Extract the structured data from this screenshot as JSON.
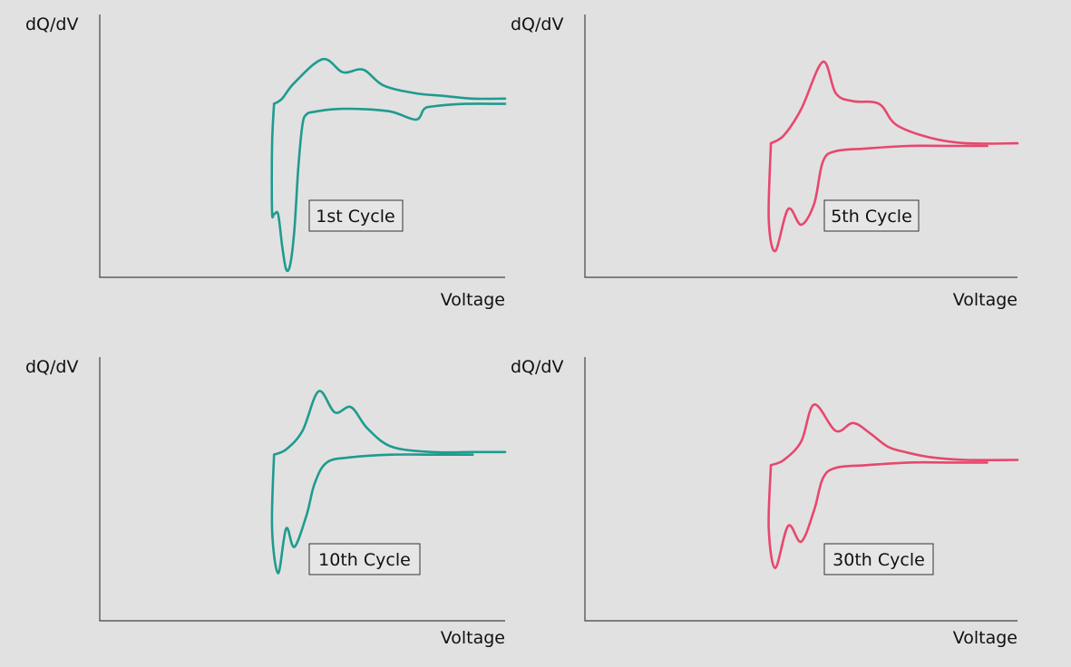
{
  "chart_data": [
    {
      "type": "line",
      "title": "",
      "xlabel": "Voltage",
      "ylabel": "dQ/dV",
      "annotation": "1st Cycle",
      "color": "#1f9b8f",
      "series": [
        {
          "x": [
            0.43,
            0.45,
            0.48,
            0.55,
            0.6,
            0.65,
            0.7,
            0.78,
            0.85,
            0.92,
            1.0
          ],
          "y": [
            0.66,
            0.68,
            0.74,
            0.83,
            0.78,
            0.79,
            0.73,
            0.7,
            0.69,
            0.68,
            0.68
          ]
        },
        {
          "x": [
            0.43,
            0.425,
            0.425,
            0.43,
            0.44,
            0.45,
            0.46,
            0.47,
            0.48,
            0.49,
            0.5,
            0.51,
            0.53,
            0.58,
            0.65,
            0.72,
            0.78,
            0.8,
            0.82,
            0.9,
            1.0
          ],
          "y": [
            0.66,
            0.5,
            0.25,
            0.24,
            0.24,
            0.12,
            0.03,
            0.05,
            0.18,
            0.42,
            0.58,
            0.62,
            0.63,
            0.64,
            0.64,
            0.63,
            0.6,
            0.64,
            0.65,
            0.66,
            0.66
          ]
        }
      ]
    },
    {
      "type": "line",
      "title": "",
      "xlabel": "Voltage",
      "ylabel": "dQ/dV",
      "annotation": "5th Cycle",
      "color": "#e8476d",
      "series": [
        {
          "x": [
            0.43,
            0.46,
            0.5,
            0.55,
            0.58,
            0.62,
            0.68,
            0.72,
            0.8,
            0.88,
            1.0
          ],
          "y": [
            0.51,
            0.54,
            0.64,
            0.82,
            0.7,
            0.67,
            0.66,
            0.58,
            0.53,
            0.51,
            0.51
          ]
        },
        {
          "x": [
            0.43,
            0.425,
            0.44,
            0.47,
            0.5,
            0.53,
            0.55,
            0.58,
            0.65,
            0.75,
            0.85,
            0.93
          ],
          "y": [
            0.51,
            0.22,
            0.1,
            0.26,
            0.2,
            0.28,
            0.44,
            0.48,
            0.49,
            0.5,
            0.5,
            0.5
          ]
        }
      ]
    },
    {
      "type": "line",
      "title": "",
      "xlabel": "Voltage",
      "ylabel": "dQ/dV",
      "annotation": "10th Cycle",
      "color": "#1f9b8f",
      "series": [
        {
          "x": [
            0.43,
            0.46,
            0.5,
            0.54,
            0.58,
            0.62,
            0.66,
            0.72,
            0.82,
            0.92,
            1.0
          ],
          "y": [
            0.63,
            0.65,
            0.72,
            0.87,
            0.79,
            0.81,
            0.73,
            0.66,
            0.64,
            0.64,
            0.64
          ]
        },
        {
          "x": [
            0.43,
            0.425,
            0.44,
            0.46,
            0.48,
            0.51,
            0.53,
            0.56,
            0.62,
            0.72,
            0.82,
            0.92
          ],
          "y": [
            0.63,
            0.35,
            0.18,
            0.35,
            0.28,
            0.4,
            0.52,
            0.6,
            0.62,
            0.63,
            0.63,
            0.63
          ]
        }
      ]
    },
    {
      "type": "line",
      "title": "",
      "xlabel": "Voltage",
      "ylabel": "dQ/dV",
      "annotation": "30th Cycle",
      "color": "#e8476d",
      "series": [
        {
          "x": [
            0.43,
            0.46,
            0.5,
            0.53,
            0.58,
            0.62,
            0.66,
            0.7,
            0.74,
            0.8,
            0.88,
            1.0
          ],
          "y": [
            0.59,
            0.61,
            0.68,
            0.82,
            0.72,
            0.75,
            0.71,
            0.66,
            0.64,
            0.62,
            0.61,
            0.61
          ]
        },
        {
          "x": [
            0.43,
            0.425,
            0.44,
            0.47,
            0.5,
            0.53,
            0.55,
            0.58,
            0.65,
            0.75,
            0.85,
            0.93
          ],
          "y": [
            0.59,
            0.35,
            0.2,
            0.36,
            0.3,
            0.42,
            0.54,
            0.58,
            0.59,
            0.6,
            0.6,
            0.6
          ]
        }
      ]
    }
  ]
}
